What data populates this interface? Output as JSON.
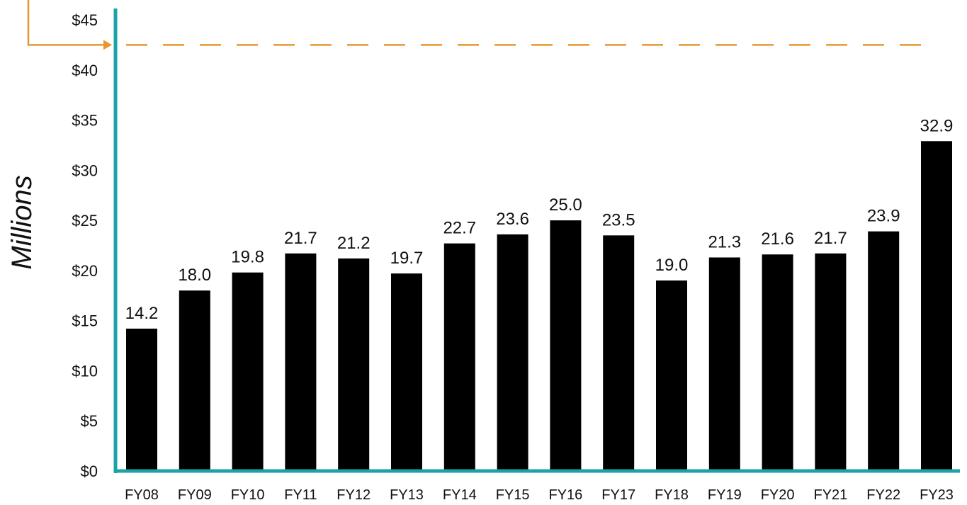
{
  "chart_data": {
    "type": "bar",
    "ylabel": "Millions",
    "categories": [
      "FY08",
      "FY09",
      "FY10",
      "FY11",
      "FY12",
      "FY13",
      "FY14",
      "FY15",
      "FY16",
      "FY17",
      "FY18",
      "FY19",
      "FY20",
      "FY21",
      "FY22",
      "FY23"
    ],
    "values": [
      14.2,
      18.0,
      19.8,
      21.7,
      21.2,
      19.7,
      22.7,
      23.6,
      25.0,
      23.5,
      19.0,
      21.3,
      21.6,
      21.7,
      23.9,
      32.9
    ],
    "value_labels": [
      "14.2",
      "18.0",
      "19.8",
      "21.7",
      "21.2",
      "19.7",
      "22.7",
      "23.6",
      "25.0",
      "23.5",
      "19.0",
      "21.3",
      "21.6",
      "21.7",
      "23.9",
      "32.9"
    ],
    "ylim": [
      0,
      45
    ],
    "y_ticks": [
      0,
      5,
      10,
      15,
      20,
      25,
      30,
      35,
      40,
      45
    ],
    "y_tick_labels": [
      "$0",
      "$5",
      "$10",
      "$15",
      "$20",
      "$25",
      "$30",
      "$35",
      "$40",
      "$45"
    ],
    "reference_line": {
      "value": 42.5,
      "style": "dashed"
    },
    "grid": false,
    "colors": {
      "bars": "#000000",
      "axis": "#1aa3a8",
      "reference": "#e8962f",
      "text": "#111111"
    }
  }
}
